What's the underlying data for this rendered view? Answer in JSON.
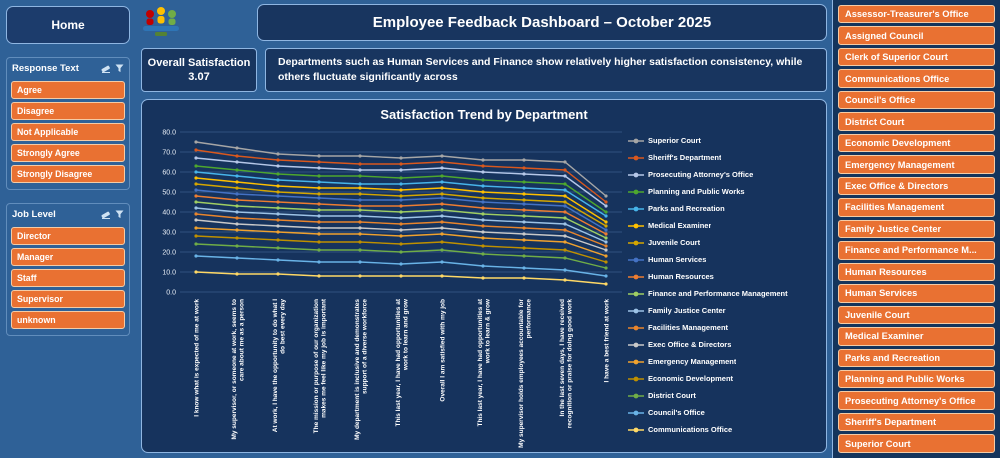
{
  "colors": {
    "background": "#2f6197",
    "panel": "#18355f",
    "panel_border": "#8fb6e2",
    "accent_orange": "#e97132",
    "text": "#ffffff",
    "gridline": "#4a6f9f"
  },
  "icons": {
    "clear_filter": "eraser-icon",
    "filter": "funnel-icon",
    "logo": "people-table-logo"
  },
  "left_sidebar": {
    "home_label": "Home",
    "sections": [
      {
        "title": "Response Text",
        "items": [
          "Agree",
          "Disagree",
          "Not Applicable",
          "Strongly Agree",
          "Strongly Disagree"
        ]
      },
      {
        "title": "Job Level",
        "items": [
          "Director",
          "Manager",
          "Staff",
          "Supervisor",
          "unknown"
        ]
      }
    ]
  },
  "header": {
    "title": "Employee Feedback Dashboard – October 2025"
  },
  "kpi": {
    "label": "Overall Satisfaction",
    "value": "3.07"
  },
  "insight": "Departments such as Human Services and Finance show relatively higher satisfaction consistency, while others fluctuate significantly across",
  "right_sidebar": {
    "items": [
      "Assessor-Treasurer's Office",
      "Assigned Council",
      "Clerk of Superior Court",
      "Communications Office",
      "Council's Office",
      "District Court",
      "Economic Development",
      "Emergency Management",
      "Exec Office & Directors",
      "Facilities Management",
      "Family Justice Center",
      "Finance and Performance M...",
      "Human Resources",
      "Human Services",
      "Juvenile Court",
      "Medical Examiner",
      "Parks and Recreation",
      "Planning and Public Works",
      "Prosecuting Attorney's Office",
      "Sheriff's Department",
      "Superior Court"
    ]
  },
  "chart_data": {
    "type": "line",
    "title": "Satisfaction Trend by Department",
    "xlabel": "",
    "ylabel": "",
    "ylim": [
      0,
      80
    ],
    "yticks": [
      0,
      10,
      20,
      30,
      40,
      50,
      60,
      70,
      80
    ],
    "grid": true,
    "legend_position": "right",
    "categories": [
      "I know what is expected of me at work",
      "My supervisor, or someone at work, seems to care about me as a person",
      "At work, I have the opportunity to do what I do best every day",
      "The mission or purpose of our organization makes me feel like my job is important",
      "My department is inclusive and demonstrates support of a diverse workforce",
      "This last year, I have had opportunities at work to learn and grow",
      "Overall I am satisfied with my job",
      "This last year, I have had opportunities at work to learn & grow",
      "My supervisor holds employees accountable for performance",
      "In the last seven days, I have received recognition or praise for doing good work",
      "I have a best friend at work"
    ],
    "series": [
      {
        "name": "Superior Court",
        "color": "#a6a6a6",
        "values": [
          75,
          72,
          69,
          68,
          68,
          67,
          68,
          66,
          66,
          65,
          48
        ]
      },
      {
        "name": "Sheriff's Department",
        "color": "#d9581e",
        "values": [
          71,
          68,
          66,
          65,
          64,
          64,
          65,
          63,
          62,
          61,
          45
        ]
      },
      {
        "name": "Prosecuting Attorney's Office",
        "color": "#b5c7e8",
        "values": [
          67,
          65,
          63,
          62,
          61,
          61,
          62,
          60,
          59,
          58,
          43
        ]
      },
      {
        "name": "Planning and Public Works",
        "color": "#4ea72e",
        "values": [
          63,
          61,
          59,
          58,
          58,
          57,
          58,
          56,
          55,
          54,
          40
        ]
      },
      {
        "name": "Parks and Recreation",
        "color": "#47b4ea",
        "values": [
          60,
          58,
          56,
          55,
          54,
          54,
          55,
          53,
          52,
          51,
          38
        ]
      },
      {
        "name": "Medical Examiner",
        "color": "#ffc000",
        "values": [
          57,
          55,
          53,
          52,
          52,
          51,
          52,
          50,
          49,
          48,
          35
        ]
      },
      {
        "name": "Juvenile Court",
        "color": "#d5a600",
        "values": [
          54,
          52,
          50,
          49,
          49,
          48,
          49,
          47,
          46,
          45,
          33
        ]
      },
      {
        "name": "Human Services",
        "color": "#4472c4",
        "values": [
          51,
          49,
          48,
          47,
          46,
          46,
          47,
          45,
          44,
          43,
          31
        ]
      },
      {
        "name": "Human Resources",
        "color": "#ed7d31",
        "values": [
          48,
          46,
          45,
          44,
          43,
          43,
          44,
          42,
          41,
          40,
          29
        ]
      },
      {
        "name": "Finance and Performance Management",
        "color": "#9fce63",
        "values": [
          45,
          43,
          42,
          41,
          41,
          40,
          41,
          39,
          38,
          37,
          27
        ]
      },
      {
        "name": "Family Justice Center",
        "color": "#9dc3e6",
        "values": [
          42,
          40,
          39,
          38,
          38,
          37,
          38,
          36,
          35,
          34,
          25
        ]
      },
      {
        "name": "Facilities Management",
        "color": "#e8852c",
        "values": [
          39,
          37,
          36,
          35,
          35,
          34,
          35,
          33,
          32,
          31,
          23
        ]
      },
      {
        "name": "Exec Office & Directors",
        "color": "#c9c9c9",
        "values": [
          36,
          34,
          33,
          32,
          32,
          31,
          32,
          30,
          29,
          28,
          21
        ]
      },
      {
        "name": "Emergency Management",
        "color": "#f0a22e",
        "values": [
          32,
          31,
          30,
          29,
          29,
          28,
          29,
          27,
          26,
          25,
          18
        ]
      },
      {
        "name": "Economic Development",
        "color": "#bf9000",
        "values": [
          28,
          27,
          26,
          25,
          25,
          24,
          25,
          23,
          22,
          21,
          15
        ]
      },
      {
        "name": "District Court",
        "color": "#70ad47",
        "values": [
          24,
          23,
          22,
          21,
          21,
          20,
          21,
          19,
          18,
          17,
          12
        ]
      },
      {
        "name": "Council's Office",
        "color": "#69b3e7",
        "values": [
          18,
          17,
          16,
          15,
          15,
          14,
          15,
          13,
          12,
          11,
          8
        ]
      },
      {
        "name": "Communications Office",
        "color": "#ffd966",
        "values": [
          10,
          9,
          9,
          8,
          8,
          8,
          8,
          7,
          7,
          6,
          4
        ]
      }
    ]
  }
}
